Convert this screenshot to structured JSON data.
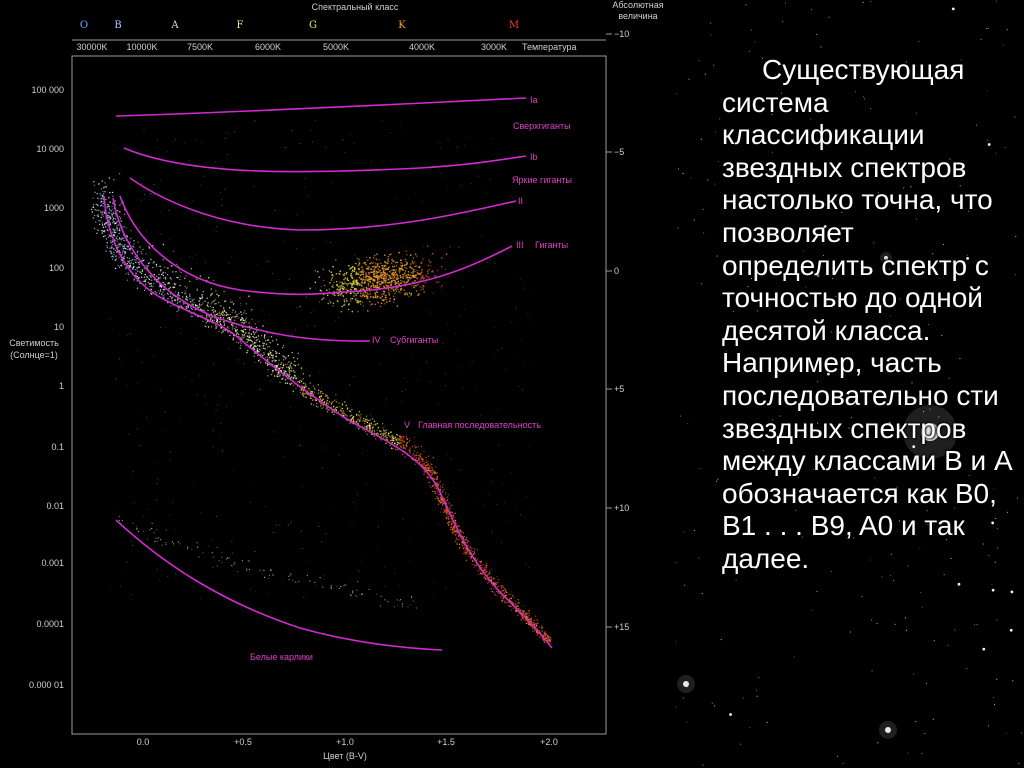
{
  "diagram": {
    "title_top": "Спектральный класс",
    "abs_mag_title": [
      "Абсолютная",
      "величина"
    ],
    "spectral_classes": [
      {
        "label": "O",
        "color": "#6aa6ff"
      },
      {
        "label": "B",
        "color": "#a8c8ff"
      },
      {
        "label": "A",
        "color": "#dddddd"
      },
      {
        "label": "F",
        "color": "#f2e9a0"
      },
      {
        "label": "G",
        "color": "#e8e040"
      },
      {
        "label": "K",
        "color": "#f0a030"
      },
      {
        "label": "M",
        "color": "#ff3030"
      }
    ],
    "temperature_ticks": [
      "30000K",
      "10000K",
      "7500K",
      "6000K",
      "5000K",
      "4000K",
      "3000K"
    ],
    "temperature_label": "Температура",
    "luminosity_ticks": [
      "100 000",
      "10 000",
      "1000",
      "100",
      "10",
      "1",
      "0.1",
      "0.01",
      "0.001",
      "0.0001",
      "0.000 01"
    ],
    "luminosity_label": [
      "Светимость",
      "(Солнце=1)"
    ],
    "abs_mag_ticks": [
      "−10",
      "−5",
      "0",
      "+5",
      "+10",
      "+15"
    ],
    "color_ticks": [
      "0.0",
      "+0.5",
      "+1.0",
      "+1.5",
      "+2.0"
    ],
    "color_label": "Цвет (B-V)",
    "sequence_labels": {
      "Ia": "Ia",
      "supergiants": "Сверхгиганты",
      "Ib": "Ib",
      "bright_giants": "Яркие гиганты",
      "II": "II",
      "III": "III",
      "giants": "Гиганты",
      "IV": "IV",
      "subgiants": "Субгиганты",
      "V": "V",
      "main_sequence": "Главная последовательность",
      "white_dwarfs": "Белые карлики"
    },
    "sequence_color": "#d22ad0"
  },
  "slide_text": "Существующая система классификации звездных спектров настолько точна, что позволяет определить спектр с точностью до одной десятой класса. Например, часть последовательно сти звездных спектров между классами B и A обозначается как B0, B1 . . . B9, A0 и так далее."
}
